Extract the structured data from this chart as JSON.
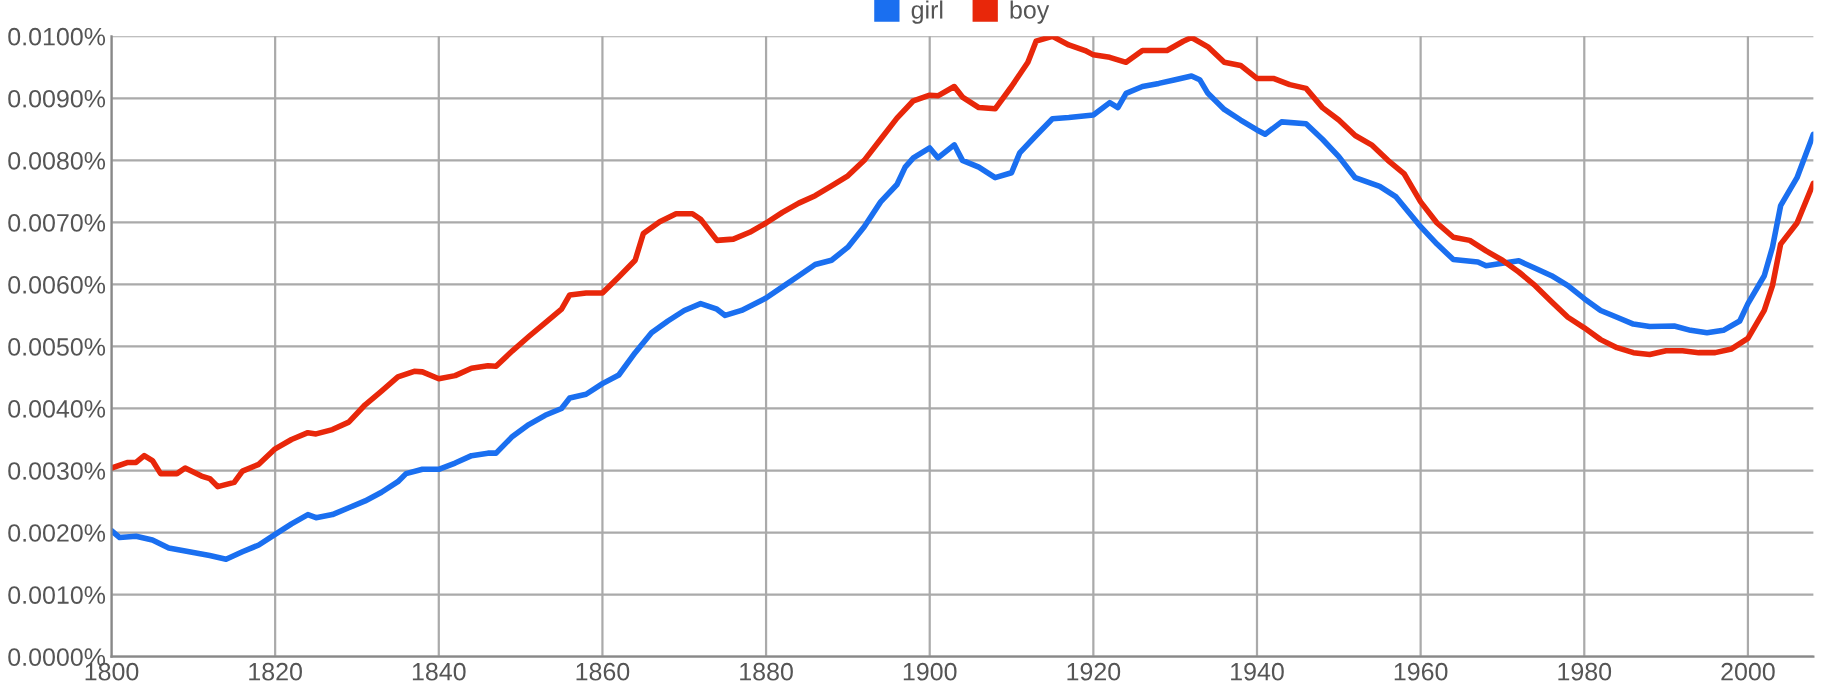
{
  "chart_data": {
    "type": "line",
    "legend": "top",
    "grid": true,
    "marker": "none",
    "line_style": "solid",
    "xlim": [
      1800,
      2008
    ],
    "xticks": [
      1800,
      1820,
      1840,
      1860,
      1880,
      1900,
      1920,
      1940,
      1960,
      1980,
      2000
    ],
    "ylim": [
      0,
      0.01
    ],
    "yticks": [
      {
        "value": 0,
        "label": "0.0000%"
      },
      {
        "value": 0.001,
        "label": "0.0010%"
      },
      {
        "value": 0.002,
        "label": "0.0020%"
      },
      {
        "value": 0.003,
        "label": "0.0030%"
      },
      {
        "value": 0.004,
        "label": "0.0040%"
      },
      {
        "value": 0.005,
        "label": "0.0050%"
      },
      {
        "value": 0.006,
        "label": "0.0060%"
      },
      {
        "value": 0.007,
        "label": "0.0070%"
      },
      {
        "value": 0.008,
        "label": "0.0080%"
      },
      {
        "value": 0.009,
        "label": "0.0090%"
      },
      {
        "value": 0.01,
        "label": "0.0100%"
      }
    ],
    "series": [
      {
        "name": "girl",
        "color": "#1a6ff0",
        "x": [
          1800,
          1801,
          1803,
          1805,
          1807,
          1810,
          1812,
          1814,
          1816,
          1818,
          1820,
          1822,
          1824,
          1825,
          1827,
          1829,
          1831,
          1833,
          1835,
          1836,
          1838,
          1840,
          1842,
          1844,
          1846,
          1847,
          1849,
          1851,
          1853,
          1855,
          1856,
          1858,
          1860,
          1862,
          1864,
          1866,
          1868,
          1870,
          1872,
          1874,
          1875,
          1877,
          1880,
          1882,
          1884,
          1886,
          1888,
          1890,
          1892,
          1894,
          1896,
          1897,
          1898,
          1900,
          1901,
          1903,
          1904,
          1906,
          1908,
          1910,
          1911,
          1913,
          1915,
          1917,
          1920,
          1922,
          1923,
          1924,
          1926,
          1928,
          1930,
          1932,
          1933,
          1934,
          1936,
          1938,
          1940,
          1941,
          1943,
          1946,
          1948,
          1950,
          1952,
          1955,
          1957,
          1960,
          1962,
          1964,
          1967,
          1968,
          1970,
          1972,
          1974,
          1976,
          1978,
          1980,
          1982,
          1984,
          1986,
          1988,
          1991,
          1993,
          1995,
          1997,
          1999,
          2000,
          2002,
          2003,
          2004,
          2006,
          2008
        ],
        "values": [
          0.00203,
          0.00192,
          0.00194,
          0.00188,
          0.00175,
          0.00168,
          0.00163,
          0.00157,
          0.00169,
          0.0018,
          0.00197,
          0.00214,
          0.00229,
          0.00224,
          0.00229,
          0.0024,
          0.00251,
          0.00265,
          0.00282,
          0.00295,
          0.00302,
          0.00302,
          0.00312,
          0.00324,
          0.00328,
          0.00328,
          0.00355,
          0.00374,
          0.00389,
          0.004,
          0.00417,
          0.00423,
          0.0044,
          0.00454,
          0.0049,
          0.00522,
          0.00541,
          0.00558,
          0.00569,
          0.0056,
          0.0055,
          0.00558,
          0.00578,
          0.00596,
          0.00614,
          0.00632,
          0.00639,
          0.0066,
          0.00693,
          0.00733,
          0.00761,
          0.00789,
          0.00804,
          0.0082,
          0.00804,
          0.00825,
          0.008,
          0.00789,
          0.00772,
          0.0078,
          0.00812,
          0.0084,
          0.00867,
          0.00869,
          0.00873,
          0.00893,
          0.00885,
          0.00908,
          0.00919,
          0.00924,
          0.0093,
          0.00936,
          0.0093,
          0.00908,
          0.00882,
          0.00865,
          0.00849,
          0.00842,
          0.00862,
          0.00859,
          0.00834,
          0.00806,
          0.00772,
          0.00758,
          0.00741,
          0.00693,
          0.00665,
          0.0064,
          0.00636,
          0.0063,
          0.00634,
          0.00638,
          0.00626,
          0.00614,
          0.00598,
          0.00577,
          0.00558,
          0.00547,
          0.00536,
          0.00532,
          0.00533,
          0.00526,
          0.00522,
          0.00526,
          0.00541,
          0.00569,
          0.00614,
          0.0066,
          0.00727,
          0.00772,
          0.00842
        ]
      },
      {
        "name": "boy",
        "color": "#e8270a",
        "x": [
          1800,
          1802,
          1803,
          1804,
          1805,
          1806,
          1808,
          1809,
          1811,
          1812,
          1813,
          1815,
          1816,
          1818,
          1820,
          1822,
          1824,
          1825,
          1827,
          1829,
          1831,
          1833,
          1835,
          1837,
          1838,
          1840,
          1842,
          1844,
          1846,
          1847,
          1849,
          1851,
          1853,
          1855,
          1856,
          1858,
          1860,
          1862,
          1864,
          1865,
          1867,
          1869,
          1871,
          1872,
          1874,
          1876,
          1878,
          1880,
          1882,
          1884,
          1886,
          1888,
          1890,
          1892,
          1894,
          1896,
          1898,
          1900,
          1901,
          1903,
          1904,
          1906,
          1908,
          1910,
          1912,
          1913,
          1915,
          1917,
          1919,
          1920,
          1922,
          1924,
          1926,
          1929,
          1931,
          1932,
          1934,
          1936,
          1938,
          1940,
          1942,
          1944,
          1946,
          1948,
          1950,
          1952,
          1954,
          1956,
          1958,
          1960,
          1962,
          1964,
          1966,
          1968,
          1970,
          1972,
          1974,
          1976,
          1978,
          1980,
          1982,
          1984,
          1986,
          1988,
          1990,
          1992,
          1994,
          1996,
          1998,
          2000,
          2002,
          2003,
          2004,
          2006,
          2008
        ],
        "values": [
          0.00304,
          0.00313,
          0.00313,
          0.00324,
          0.00316,
          0.00295,
          0.00295,
          0.00304,
          0.00291,
          0.00287,
          0.00274,
          0.00281,
          0.00299,
          0.0031,
          0.00335,
          0.0035,
          0.00361,
          0.00359,
          0.00366,
          0.00378,
          0.00406,
          0.00428,
          0.00451,
          0.0046,
          0.00459,
          0.00448,
          0.00453,
          0.00465,
          0.00469,
          0.00468,
          0.00493,
          0.00516,
          0.00538,
          0.0056,
          0.00583,
          0.00586,
          0.00586,
          0.00612,
          0.00639,
          0.00682,
          0.00701,
          0.00714,
          0.00714,
          0.00705,
          0.00671,
          0.00673,
          0.00684,
          0.00699,
          0.00716,
          0.00731,
          0.00743,
          0.00759,
          0.00775,
          0.008,
          0.00834,
          0.00868,
          0.00896,
          0.00905,
          0.00904,
          0.00919,
          0.00902,
          0.00885,
          0.00883,
          0.00919,
          0.00958,
          0.00992,
          0.01,
          0.00986,
          0.00977,
          0.0097,
          0.00966,
          0.00958,
          0.00977,
          0.00977,
          0.00992,
          0.00998,
          0.00983,
          0.00958,
          0.00953,
          0.00932,
          0.00932,
          0.00922,
          0.00916,
          0.00885,
          0.00865,
          0.0084,
          0.00825,
          0.008,
          0.00778,
          0.00733,
          0.00699,
          0.00676,
          0.00671,
          0.00654,
          0.00639,
          0.0062,
          0.00598,
          0.00572,
          0.00547,
          0.0053,
          0.00511,
          0.00498,
          0.0049,
          0.00487,
          0.00493,
          0.00493,
          0.0049,
          0.0049,
          0.00496,
          0.00513,
          0.00558,
          0.00598,
          0.00665,
          0.00699,
          0.00763
        ]
      }
    ]
  }
}
